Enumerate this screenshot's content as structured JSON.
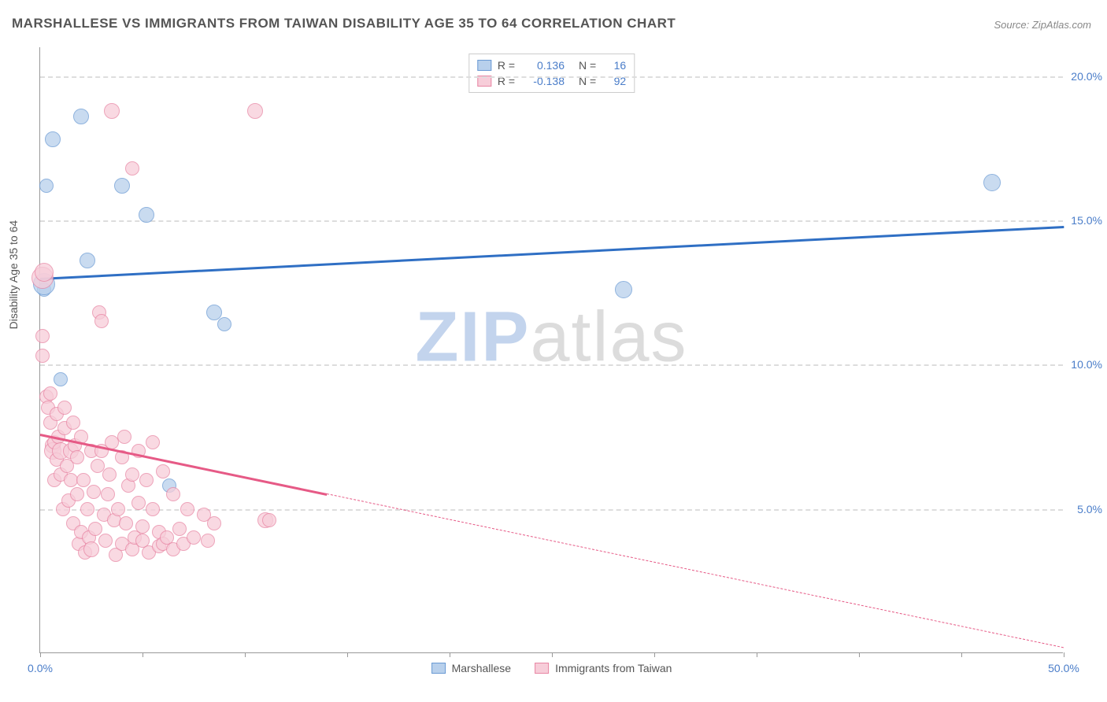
{
  "chart": {
    "type": "scatter",
    "title": "MARSHALLESE VS IMMIGRANTS FROM TAIWAN DISABILITY AGE 35 TO 64 CORRELATION CHART",
    "source": "Source: ZipAtlas.com",
    "y_axis_title": "Disability Age 35 to 64",
    "background_color": "#ffffff",
    "grid_color": "#dddddd",
    "axis_text_color": "#555555",
    "label_blue": "#4a7dc9",
    "xlim": [
      0,
      50
    ],
    "ylim": [
      0,
      21
    ],
    "x_ticks": [
      0,
      5,
      10,
      15,
      20,
      25,
      30,
      35,
      40,
      45,
      50
    ],
    "x_tick_labels": {
      "0": "0.0%",
      "50": "50.0%"
    },
    "y_ticks": [
      5,
      10,
      15,
      20
    ],
    "y_tick_labels": {
      "5": "5.0%",
      "10": "10.0%",
      "15": "15.0%",
      "20": "20.0%"
    },
    "watermark": {
      "text_zip": "ZIP",
      "text_atlas": "atlas",
      "color_zip": "#c3d4ed",
      "color_atlas": "#dcdcdc"
    },
    "series": [
      {
        "name": "Marshallese",
        "color_fill": "#b8d0ec",
        "color_stroke": "#6a9ad4",
        "trend_color": "#2f6fc4",
        "R": "0.136",
        "N": "16",
        "trend": {
          "x1": 0,
          "y1": 13.0,
          "x2": 50,
          "y2": 14.8,
          "dash_from_x": null
        },
        "points": [
          {
            "x": 0.2,
            "y": 12.6,
            "r": 9
          },
          {
            "x": 0.2,
            "y": 12.8,
            "r": 14
          },
          {
            "x": 0.3,
            "y": 16.2,
            "r": 9
          },
          {
            "x": 0.6,
            "y": 17.8,
            "r": 10
          },
          {
            "x": 1.0,
            "y": 9.5,
            "r": 9
          },
          {
            "x": 2.0,
            "y": 18.6,
            "r": 10
          },
          {
            "x": 2.3,
            "y": 13.6,
            "r": 10
          },
          {
            "x": 4.0,
            "y": 16.2,
            "r": 10
          },
          {
            "x": 5.2,
            "y": 15.2,
            "r": 10
          },
          {
            "x": 6.3,
            "y": 5.8,
            "r": 9
          },
          {
            "x": 8.5,
            "y": 11.8,
            "r": 10
          },
          {
            "x": 9.0,
            "y": 11.4,
            "r": 9
          },
          {
            "x": 28.5,
            "y": 12.6,
            "r": 11
          },
          {
            "x": 46.5,
            "y": 16.3,
            "r": 11
          }
        ]
      },
      {
        "name": "Immigrants from Taiwan",
        "color_fill": "#f7cdd9",
        "color_stroke": "#e886a4",
        "trend_color": "#e65a86",
        "R": "-0.138",
        "N": "92",
        "trend": {
          "x1": 0,
          "y1": 7.6,
          "x2": 50,
          "y2": 0.2,
          "dash_from_x": 14
        },
        "points": [
          {
            "x": 0.1,
            "y": 13.0,
            "r": 14
          },
          {
            "x": 0.1,
            "y": 11.0,
            "r": 9
          },
          {
            "x": 0.1,
            "y": 10.3,
            "r": 9
          },
          {
            "x": 0.2,
            "y": 13.2,
            "r": 12
          },
          {
            "x": 0.3,
            "y": 8.9,
            "r": 9
          },
          {
            "x": 0.4,
            "y": 8.5,
            "r": 9
          },
          {
            "x": 0.5,
            "y": 9.0,
            "r": 9
          },
          {
            "x": 0.5,
            "y": 8.0,
            "r": 9
          },
          {
            "x": 0.6,
            "y": 7.2,
            "r": 10
          },
          {
            "x": 0.6,
            "y": 7.0,
            "r": 11
          },
          {
            "x": 0.7,
            "y": 7.3,
            "r": 9
          },
          {
            "x": 0.7,
            "y": 6.0,
            "r": 9
          },
          {
            "x": 0.8,
            "y": 8.3,
            "r": 9
          },
          {
            "x": 0.8,
            "y": 6.7,
            "r": 9
          },
          {
            "x": 0.9,
            "y": 7.5,
            "r": 9
          },
          {
            "x": 1.0,
            "y": 6.2,
            "r": 9
          },
          {
            "x": 1.0,
            "y": 7.0,
            "r": 11
          },
          {
            "x": 1.1,
            "y": 5.0,
            "r": 9
          },
          {
            "x": 1.2,
            "y": 7.8,
            "r": 9
          },
          {
            "x": 1.2,
            "y": 8.5,
            "r": 9
          },
          {
            "x": 1.3,
            "y": 6.5,
            "r": 9
          },
          {
            "x": 1.4,
            "y": 5.3,
            "r": 9
          },
          {
            "x": 1.5,
            "y": 7.0,
            "r": 10
          },
          {
            "x": 1.5,
            "y": 6.0,
            "r": 9
          },
          {
            "x": 1.6,
            "y": 8.0,
            "r": 9
          },
          {
            "x": 1.6,
            "y": 4.5,
            "r": 9
          },
          {
            "x": 1.7,
            "y": 7.2,
            "r": 9
          },
          {
            "x": 1.8,
            "y": 5.5,
            "r": 9
          },
          {
            "x": 1.8,
            "y": 6.8,
            "r": 9
          },
          {
            "x": 1.9,
            "y": 3.8,
            "r": 9
          },
          {
            "x": 2.0,
            "y": 4.2,
            "r": 9
          },
          {
            "x": 2.0,
            "y": 7.5,
            "r": 9
          },
          {
            "x": 2.1,
            "y": 6.0,
            "r": 9
          },
          {
            "x": 2.2,
            "y": 3.5,
            "r": 9
          },
          {
            "x": 2.3,
            "y": 5.0,
            "r": 9
          },
          {
            "x": 2.4,
            "y": 4.0,
            "r": 9
          },
          {
            "x": 2.5,
            "y": 7.0,
            "r": 9
          },
          {
            "x": 2.5,
            "y": 3.6,
            "r": 10
          },
          {
            "x": 2.6,
            "y": 5.6,
            "r": 9
          },
          {
            "x": 2.7,
            "y": 4.3,
            "r": 9
          },
          {
            "x": 2.8,
            "y": 6.5,
            "r": 9
          },
          {
            "x": 2.9,
            "y": 11.8,
            "r": 9
          },
          {
            "x": 3.0,
            "y": 11.5,
            "r": 9
          },
          {
            "x": 3.0,
            "y": 7.0,
            "r": 9
          },
          {
            "x": 3.1,
            "y": 4.8,
            "r": 9
          },
          {
            "x": 3.2,
            "y": 3.9,
            "r": 9
          },
          {
            "x": 3.3,
            "y": 5.5,
            "r": 9
          },
          {
            "x": 3.4,
            "y": 6.2,
            "r": 9
          },
          {
            "x": 3.5,
            "y": 18.8,
            "r": 10
          },
          {
            "x": 3.5,
            "y": 7.3,
            "r": 9
          },
          {
            "x": 3.6,
            "y": 4.6,
            "r": 9
          },
          {
            "x": 3.7,
            "y": 3.4,
            "r": 9
          },
          {
            "x": 3.8,
            "y": 5.0,
            "r": 9
          },
          {
            "x": 4.0,
            "y": 6.8,
            "r": 9
          },
          {
            "x": 4.0,
            "y": 3.8,
            "r": 9
          },
          {
            "x": 4.1,
            "y": 7.5,
            "r": 9
          },
          {
            "x": 4.2,
            "y": 4.5,
            "r": 9
          },
          {
            "x": 4.3,
            "y": 5.8,
            "r": 9
          },
          {
            "x": 4.5,
            "y": 16.8,
            "r": 9
          },
          {
            "x": 4.5,
            "y": 6.2,
            "r": 9
          },
          {
            "x": 4.5,
            "y": 3.6,
            "r": 9
          },
          {
            "x": 4.6,
            "y": 4.0,
            "r": 9
          },
          {
            "x": 4.8,
            "y": 7.0,
            "r": 9
          },
          {
            "x": 4.8,
            "y": 5.2,
            "r": 9
          },
          {
            "x": 5.0,
            "y": 3.9,
            "r": 9
          },
          {
            "x": 5.0,
            "y": 4.4,
            "r": 9
          },
          {
            "x": 5.2,
            "y": 6.0,
            "r": 9
          },
          {
            "x": 5.3,
            "y": 3.5,
            "r": 9
          },
          {
            "x": 5.5,
            "y": 5.0,
            "r": 9
          },
          {
            "x": 5.5,
            "y": 7.3,
            "r": 9
          },
          {
            "x": 5.8,
            "y": 4.2,
            "r": 9
          },
          {
            "x": 5.8,
            "y": 3.7,
            "r": 9
          },
          {
            "x": 6.0,
            "y": 6.3,
            "r": 9
          },
          {
            "x": 6.0,
            "y": 3.8,
            "r": 9
          },
          {
            "x": 6.2,
            "y": 4.0,
            "r": 9
          },
          {
            "x": 6.5,
            "y": 5.5,
            "r": 9
          },
          {
            "x": 6.5,
            "y": 3.6,
            "r": 9
          },
          {
            "x": 6.8,
            "y": 4.3,
            "r": 9
          },
          {
            "x": 7.0,
            "y": 3.8,
            "r": 9
          },
          {
            "x": 7.2,
            "y": 5.0,
            "r": 9
          },
          {
            "x": 7.5,
            "y": 4.0,
            "r": 9
          },
          {
            "x": 8.0,
            "y": 4.8,
            "r": 9
          },
          {
            "x": 8.2,
            "y": 3.9,
            "r": 9
          },
          {
            "x": 8.5,
            "y": 4.5,
            "r": 9
          },
          {
            "x": 10.5,
            "y": 18.8,
            "r": 10
          },
          {
            "x": 11.0,
            "y": 4.6,
            "r": 10
          },
          {
            "x": 11.2,
            "y": 4.6,
            "r": 9
          }
        ]
      }
    ],
    "legend_top": {
      "R_label": "R  =",
      "N_label": "N  ="
    },
    "legend_bottom": [
      {
        "label": "Marshallese",
        "fill": "#b8d0ec",
        "stroke": "#6a9ad4"
      },
      {
        "label": "Immigrants from Taiwan",
        "fill": "#f7cdd9",
        "stroke": "#e886a4"
      }
    ]
  }
}
